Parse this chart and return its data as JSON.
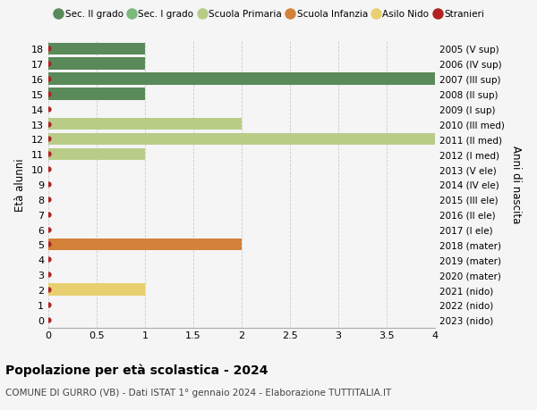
{
  "ages": [
    0,
    1,
    2,
    3,
    4,
    5,
    6,
    7,
    8,
    9,
    10,
    11,
    12,
    13,
    14,
    15,
    16,
    17,
    18
  ],
  "right_labels": [
    "2023 (nido)",
    "2022 (nido)",
    "2021 (nido)",
    "2020 (mater)",
    "2019 (mater)",
    "2018 (mater)",
    "2017 (I ele)",
    "2016 (II ele)",
    "2015 (III ele)",
    "2014 (IV ele)",
    "2013 (V ele)",
    "2012 (I med)",
    "2011 (II med)",
    "2010 (III med)",
    "2009 (I sup)",
    "2008 (II sup)",
    "2007 (III sup)",
    "2006 (IV sup)",
    "2005 (V sup)"
  ],
  "bar_values": [
    0,
    0,
    1,
    0,
    0,
    2,
    0,
    0,
    0,
    0,
    0,
    1,
    4,
    2,
    0,
    1,
    4,
    1,
    1
  ],
  "bar_colors": [
    "none",
    "none",
    "#e8d070",
    "none",
    "none",
    "#d4813a",
    "none",
    "none",
    "none",
    "none",
    "none",
    "#b8cc88",
    "#b8cc88",
    "#b8cc88",
    "none",
    "#5a8a5a",
    "#5a8a5a",
    "#5a8a5a",
    "#5a8a5a"
  ],
  "dot_color": "#b22222",
  "title": "Popolazione per età scolastica - 2024",
  "subtitle": "COMUNE DI GURRO (VB) - Dati ISTAT 1° gennaio 2024 - Elaborazione TUTTITALIA.IT",
  "ylabel": "Età alunni",
  "right_ylabel": "Anni di nascita",
  "xlim": [
    0,
    4.0
  ],
  "ylim_min": -0.55,
  "ylim_max": 18.55,
  "xticks": [
    0,
    0.5,
    1.0,
    1.5,
    2.0,
    2.5,
    3.0,
    3.5,
    4.0
  ],
  "legend_labels": [
    "Sec. II grado",
    "Sec. I grado",
    "Scuola Primaria",
    "Scuola Infanzia",
    "Asilo Nido",
    "Stranieri"
  ],
  "legend_colors": [
    "#5a8a5a",
    "#7db87d",
    "#b8cc88",
    "#d4813a",
    "#e8d070",
    "#b22222"
  ],
  "bg_color": "#f5f5f5",
  "grid_color": "#cccccc",
  "bar_height": 0.8
}
